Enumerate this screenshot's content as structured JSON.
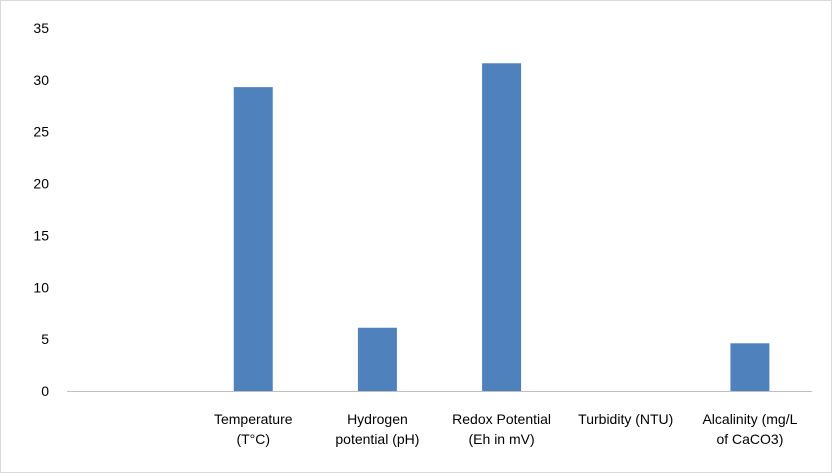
{
  "chart_data": {
    "type": "bar",
    "categories": [
      [
        "",
        ""
      ],
      [
        "Temperature",
        "(T°C)"
      ],
      [
        "Hydrogen",
        "potential (pH)"
      ],
      [
        "Redox Potential",
        "(Eh in mV)"
      ],
      [
        "Turbidity (NTU)",
        ""
      ],
      [
        "Alcalinity (mg/L",
        "of CaCO3)"
      ]
    ],
    "values": [
      0,
      29.3,
      6.1,
      31.6,
      0,
      4.6
    ],
    "title": "",
    "xlabel": "",
    "ylabel": "",
    "ylim": [
      0,
      35
    ],
    "yticks": [
      "0",
      "5",
      "10",
      "15",
      "20",
      "25",
      "30",
      "35"
    ],
    "grid": false,
    "legend": "none",
    "bar_color": "#4f81bd",
    "axis_color": "#bfbfbf"
  }
}
